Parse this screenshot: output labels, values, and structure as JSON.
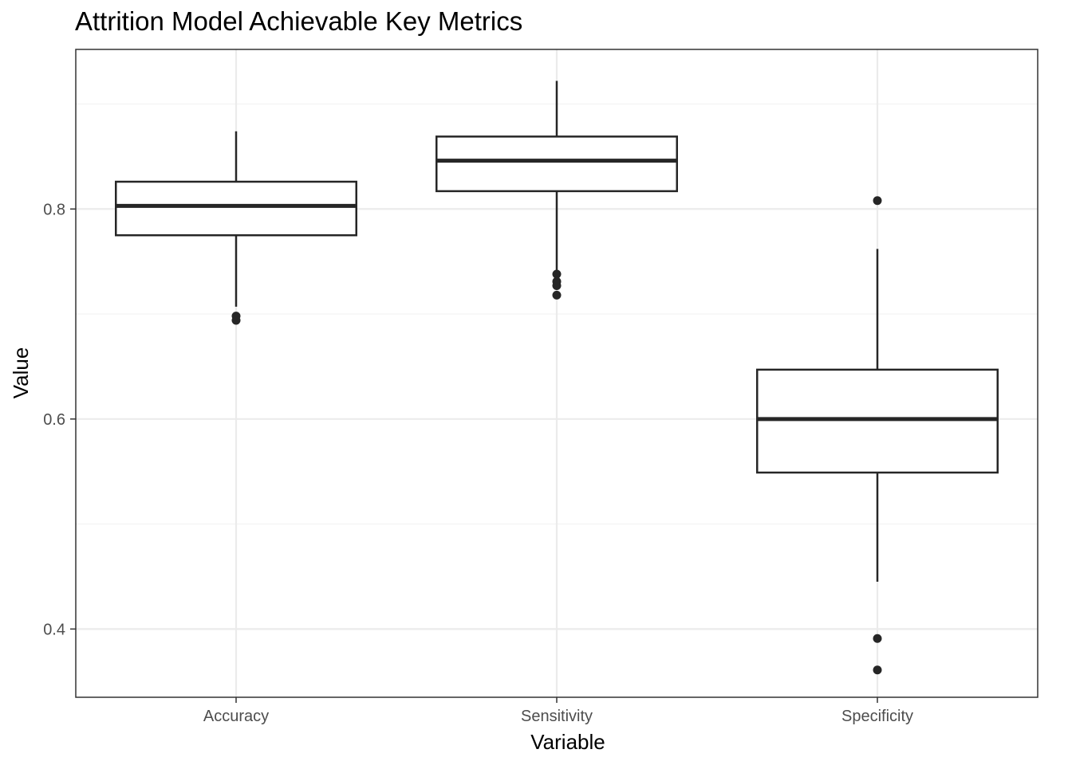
{
  "chart_data": {
    "type": "boxplot",
    "title": "Attrition Model Achievable Key Metrics",
    "xlabel": "Variable",
    "ylabel": "Value",
    "ylim": [
      0.335,
      0.952
    ],
    "y_ticks": [
      0.4,
      0.6,
      0.8
    ],
    "y_tick_labels": [
      "0.4",
      "0.6",
      "0.8"
    ],
    "grid": true,
    "categories": [
      "Accuracy",
      "Sensitivity",
      "Specificity"
    ],
    "boxes": [
      {
        "category": "Accuracy",
        "whisker_low": 0.707,
        "q1": 0.775,
        "median": 0.803,
        "q3": 0.826,
        "whisker_high": 0.874,
        "outliers": [
          0.698,
          0.694
        ]
      },
      {
        "category": "Sensitivity",
        "whisker_low": 0.738,
        "q1": 0.817,
        "median": 0.846,
        "q3": 0.869,
        "whisker_high": 0.922,
        "outliers": [
          0.738,
          0.731,
          0.727,
          0.718
        ]
      },
      {
        "category": "Specificity",
        "whisker_low": 0.445,
        "q1": 0.549,
        "median": 0.6,
        "q3": 0.647,
        "whisker_high": 0.762,
        "outliers": [
          0.808,
          0.391,
          0.361
        ]
      }
    ],
    "colors": {
      "box_stroke": "#262626",
      "grid_major": "#ebebeb",
      "grid_minor": "#f2f2f2",
      "panel_border": "#333333",
      "tick_text": "#4d4d4d"
    }
  }
}
